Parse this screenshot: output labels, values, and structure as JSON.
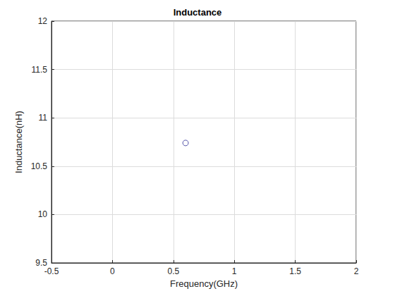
{
  "chart_data": {
    "type": "scatter",
    "title": "Inductance",
    "x_label": "Frequency(GHz)",
    "y_label": "Inductance(nH)",
    "x": [
      0.6
    ],
    "values": [
      10.74
    ],
    "color": "#2e2e96",
    "marker": "circle",
    "xlim": [
      -0.5,
      2
    ],
    "xticks": [
      -0.5,
      0,
      0.5,
      1,
      1.5,
      2
    ],
    "ylim": [
      9.5,
      12
    ],
    "yticks": [
      9.5,
      10,
      10.5,
      11,
      11.5,
      12
    ],
    "grid": true
  }
}
